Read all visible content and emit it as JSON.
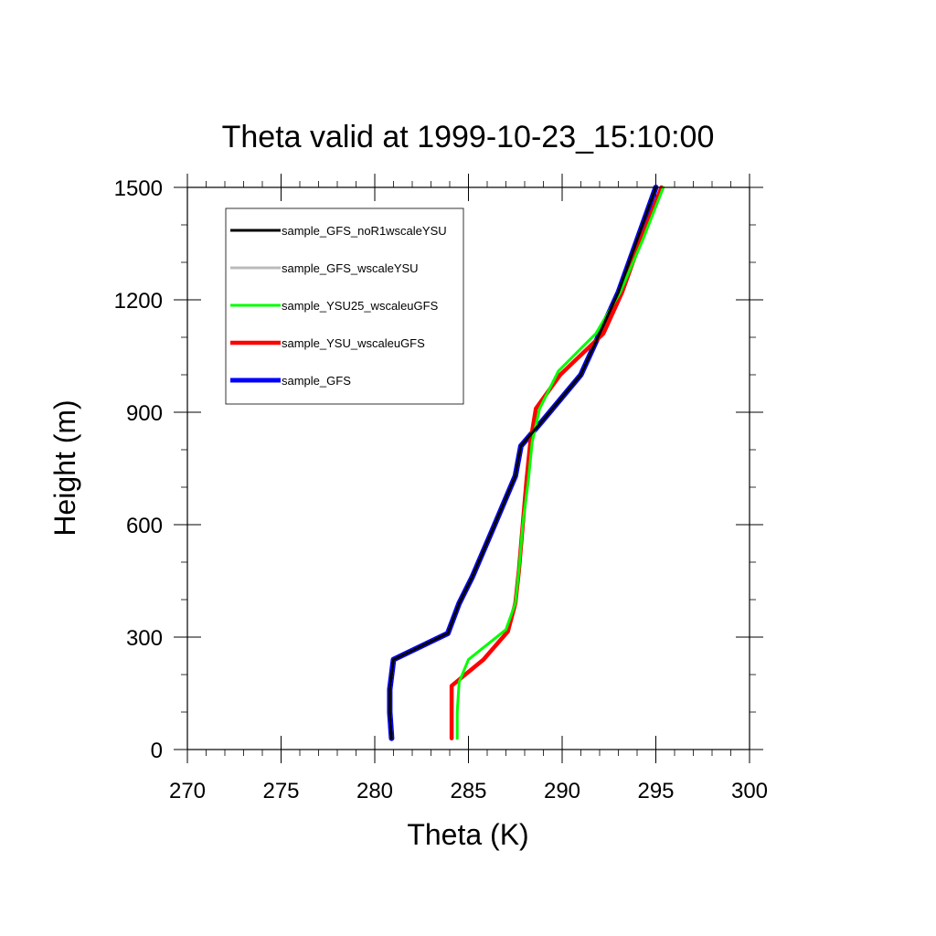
{
  "chart_data": {
    "type": "line",
    "title": "Theta valid at 1999-10-23_15:10:00",
    "xlabel": "Theta (K)",
    "ylabel": "Height (m)",
    "xlim": [
      270,
      300
    ],
    "ylim": [
      0,
      1500
    ],
    "xticks": [
      270,
      275,
      280,
      285,
      290,
      295,
      300
    ],
    "yticks": [
      0,
      300,
      600,
      900,
      1200,
      1500
    ],
    "grid": false,
    "legend_position": "top-left",
    "series": [
      {
        "name": "sample_GFS_noR1wscaleYSU",
        "color": "#000000",
        "points": [
          [
            280.9,
            30
          ],
          [
            280.8,
            100
          ],
          [
            280.8,
            160
          ],
          [
            281.0,
            240
          ],
          [
            283.9,
            310
          ],
          [
            284.5,
            390
          ],
          [
            285.2,
            460
          ],
          [
            286.4,
            600
          ],
          [
            287.5,
            730
          ],
          [
            287.8,
            810
          ],
          [
            289.0,
            880
          ],
          [
            291.0,
            1000
          ],
          [
            292.0,
            1110
          ],
          [
            293.0,
            1220
          ],
          [
            294.0,
            1360
          ],
          [
            295.0,
            1500
          ]
        ]
      },
      {
        "name": "sample_GFS_wscaleYSU",
        "color": "#bbbbbb",
        "points": [
          [
            280.9,
            30
          ],
          [
            280.8,
            100
          ],
          [
            280.8,
            160
          ],
          [
            281.0,
            240
          ],
          [
            283.9,
            310
          ],
          [
            284.5,
            390
          ],
          [
            285.2,
            460
          ],
          [
            286.4,
            600
          ],
          [
            287.5,
            730
          ],
          [
            287.8,
            810
          ],
          [
            289.0,
            880
          ],
          [
            291.0,
            1000
          ],
          [
            292.0,
            1110
          ],
          [
            293.0,
            1220
          ],
          [
            294.0,
            1360
          ],
          [
            295.0,
            1500
          ]
        ]
      },
      {
        "name": "sample_YSU25_wscaleuGFS",
        "color": "#00ff00",
        "points": [
          [
            284.4,
            30
          ],
          [
            284.4,
            100
          ],
          [
            284.5,
            180
          ],
          [
            285.0,
            240
          ],
          [
            287.0,
            320
          ],
          [
            287.5,
            390
          ],
          [
            287.7,
            480
          ],
          [
            287.9,
            600
          ],
          [
            288.2,
            720
          ],
          [
            288.4,
            820
          ],
          [
            288.8,
            910
          ],
          [
            289.8,
            1010
          ],
          [
            291.8,
            1110
          ],
          [
            293.1,
            1220
          ],
          [
            294.3,
            1360
          ],
          [
            295.4,
            1500
          ]
        ]
      },
      {
        "name": "sample_YSU_wscaleuGFS",
        "color": "#ff0000",
        "points": [
          [
            284.1,
            30
          ],
          [
            284.1,
            100
          ],
          [
            284.1,
            170
          ],
          [
            285.8,
            240
          ],
          [
            287.1,
            315
          ],
          [
            287.5,
            390
          ],
          [
            287.7,
            480
          ],
          [
            287.9,
            600
          ],
          [
            288.1,
            720
          ],
          [
            288.3,
            820
          ],
          [
            288.6,
            910
          ],
          [
            289.9,
            1000
          ],
          [
            292.2,
            1110
          ],
          [
            293.2,
            1220
          ],
          [
            294.2,
            1360
          ],
          [
            295.3,
            1500
          ]
        ]
      },
      {
        "name": "sample_GFS",
        "color": "#0000ff",
        "points": [
          [
            280.9,
            30
          ],
          [
            280.8,
            100
          ],
          [
            280.8,
            160
          ],
          [
            281.0,
            240
          ],
          [
            283.9,
            310
          ],
          [
            284.5,
            390
          ],
          [
            285.2,
            460
          ],
          [
            286.4,
            600
          ],
          [
            287.5,
            730
          ],
          [
            287.8,
            810
          ],
          [
            289.0,
            880
          ],
          [
            291.0,
            1000
          ],
          [
            292.0,
            1110
          ],
          [
            293.0,
            1220
          ],
          [
            294.0,
            1360
          ],
          [
            295.0,
            1500
          ]
        ]
      }
    ]
  }
}
